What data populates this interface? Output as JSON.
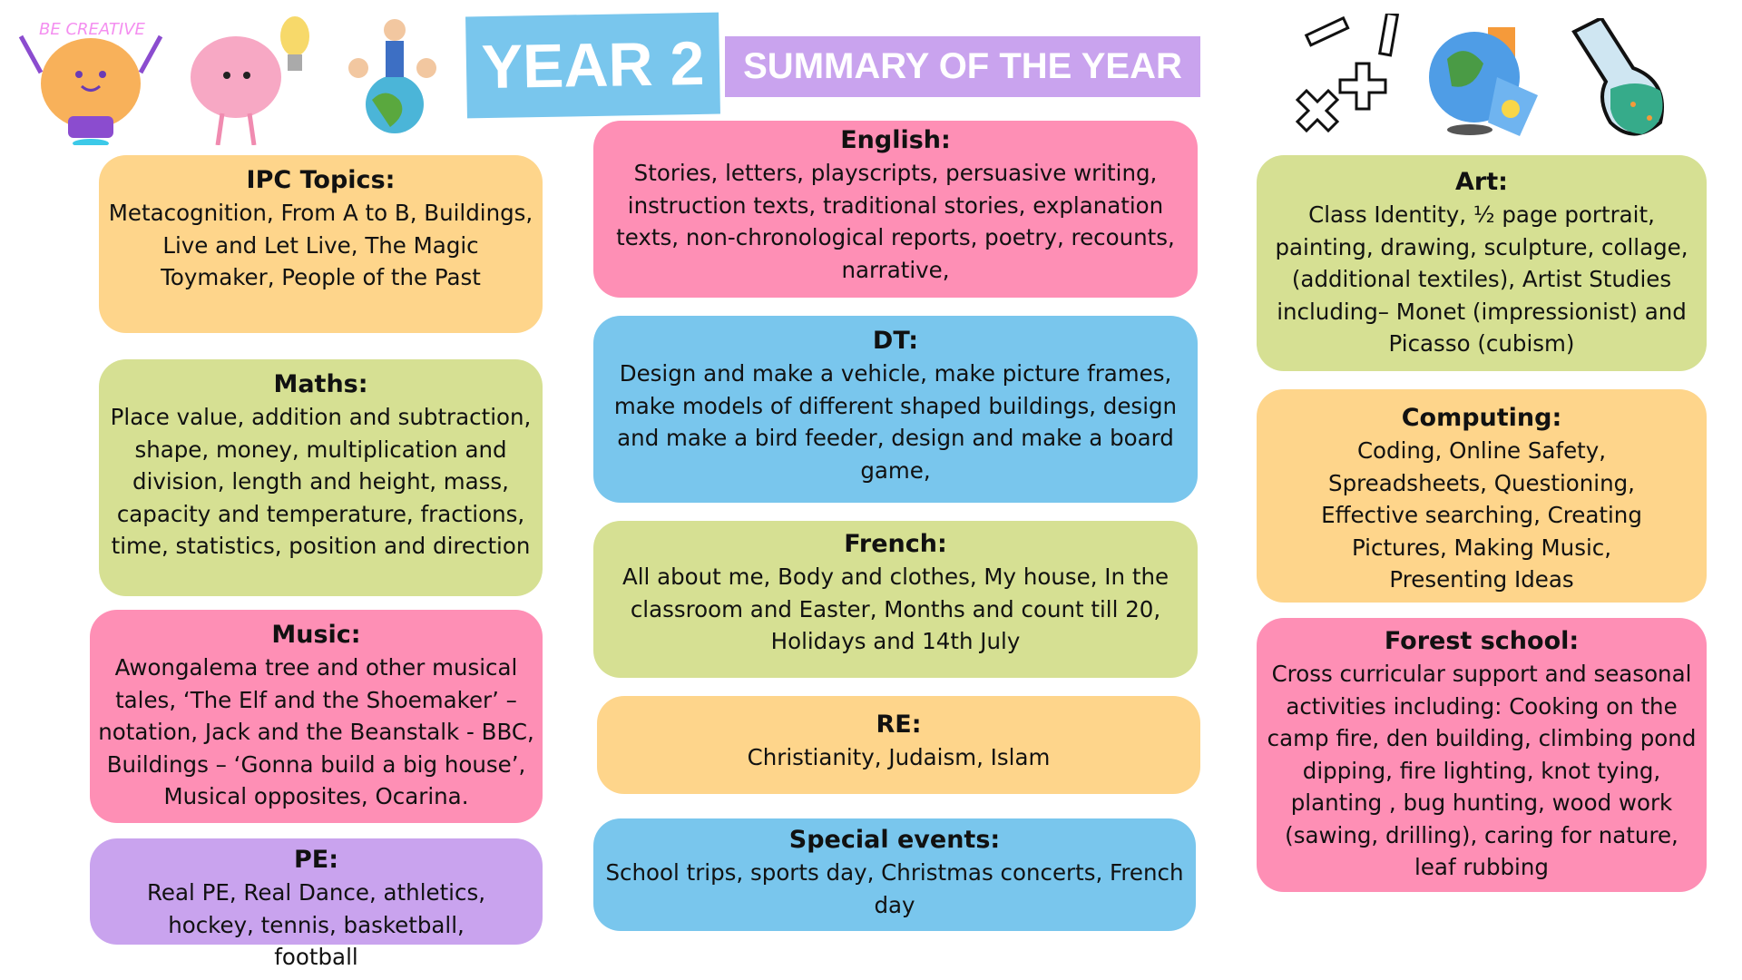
{
  "header": {
    "title": "YEAR 2",
    "subtitle": "SUMMARY OF THE YEAR",
    "sticker_text": "BE CREATIVE"
  },
  "colors": {
    "orange": "#fed58b",
    "green": "#d6e093",
    "pink": "#fe8fb5",
    "blue": "#79c6ed",
    "purple": "#c9a3ee"
  },
  "icons": [
    "lightbulb-creative-icon",
    "brain-icon",
    "children-globe-icon",
    "math-symbols-icon",
    "globe-icon",
    "flask-icon"
  ],
  "sections": {
    "ipc": {
      "title": "IPC Topics:",
      "body": "Metacognition, From A to B, Buildings, Live and Let Live, The Magic Toymaker, People of the Past"
    },
    "maths": {
      "title": "Maths:",
      "body": "Place value, addition and subtraction, shape, money, multiplication and division, length and height, mass, capacity and temperature, fractions, time, statistics, position and direction"
    },
    "music": {
      "title": "Music:",
      "body": "Awongalema tree and other musical tales, ‘The Elf and the Shoemaker’ – notation, Jack and the Beanstalk - BBC, Buildings – ‘Gonna build a big house’, Musical opposites,  Ocarina."
    },
    "pe": {
      "title": "PE:",
      "body": "Real PE, Real Dance, athletics, hockey, tennis, basketball, football"
    },
    "english": {
      "title": "English:",
      "body": "Stories, letters, playscripts, persuasive writing, instruction texts, traditional stories, explanation texts, non-chronological reports, poetry, recounts, narrative,"
    },
    "dt": {
      "title": "DT:",
      "body": "Design and make a vehicle, make picture frames, make models of different shaped buildings, design and make a bird feeder, design and make a board game,"
    },
    "french": {
      "title": "French:",
      "body": "All about me, Body and clothes, My house, In the classroom and Easter, Months and count till 20, Holidays and 14th July"
    },
    "re": {
      "title": "RE:",
      "body": "Christianity, Judaism, Islam"
    },
    "special": {
      "title": "Special events:",
      "body": "School trips, sports day, Christmas concerts, French day"
    },
    "art": {
      "title": "Art:",
      "body": "Class Identity, ½ page portrait, painting, drawing, sculpture, collage, (additional textiles), Artist Studies including– Monet (impressionist) and Picasso (cubism)"
    },
    "computing": {
      "title": "Computing:",
      "body": "Coding, Online Safety, Spreadsheets, Questioning, Effective searching, Creating Pictures, Making Music, Presenting Ideas"
    },
    "forest": {
      "title": "Forest school:",
      "body": "Cross curricular support and seasonal activities including: Cooking on the camp fire, den building, climbing pond dipping, fire lighting, knot tying, planting , bug hunting, wood work (sawing, drilling), caring for nature, leaf rubbing"
    }
  }
}
